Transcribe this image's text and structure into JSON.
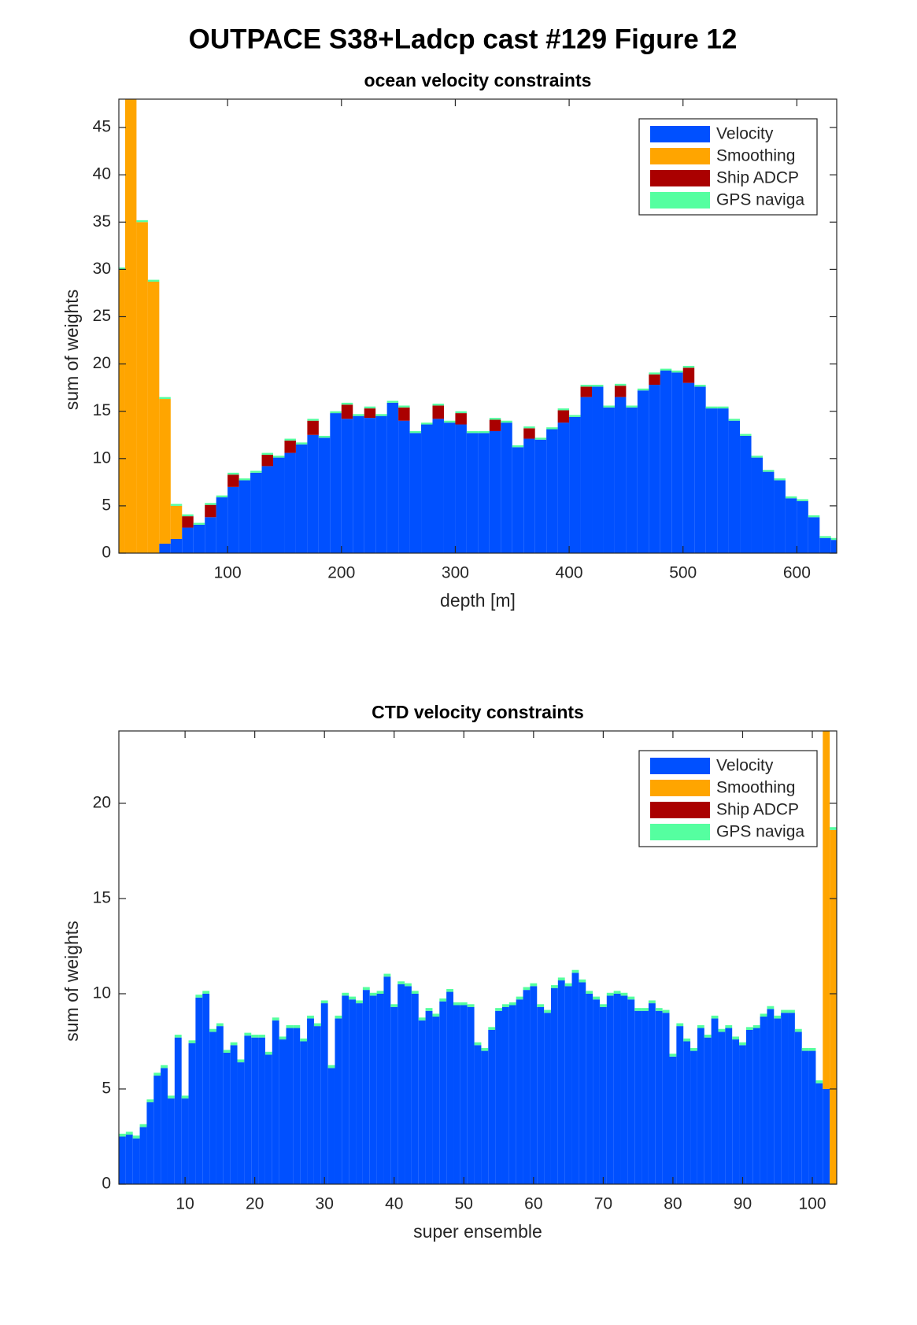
{
  "title": "OUTPACE S38+Ladcp cast #129  Figure 12",
  "chart_data": [
    {
      "type": "bar",
      "stacked": true,
      "title": "ocean velocity constraints",
      "xlabel": "depth [m]",
      "ylabel": "sum of weights",
      "legend": "upper right",
      "x": [
        5,
        15,
        25,
        35,
        45,
        55,
        65,
        75,
        85,
        95,
        105,
        115,
        125,
        135,
        145,
        155,
        165,
        175,
        185,
        195,
        205,
        215,
        225,
        235,
        245,
        255,
        265,
        275,
        285,
        295,
        305,
        315,
        325,
        335,
        345,
        355,
        365,
        375,
        385,
        395,
        405,
        415,
        425,
        435,
        445,
        455,
        465,
        475,
        485,
        495,
        505,
        515,
        525,
        535,
        545,
        555,
        565,
        575,
        585,
        595,
        605,
        615,
        625,
        635
      ],
      "xlim": [
        4.5,
        635
      ],
      "ylim": [
        0,
        48
      ],
      "xticks": [
        100,
        200,
        300,
        400,
        500,
        600
      ],
      "yticks": [
        0,
        5,
        10,
        15,
        20,
        25,
        30,
        35,
        40,
        45
      ],
      "series": [
        {
          "name": "Velocity",
          "color": "#0050ff",
          "values": [
            0,
            0,
            0,
            0,
            1,
            1.5,
            2.7,
            3.0,
            3.8,
            5.9,
            7.0,
            7.7,
            8.5,
            9.2,
            10.1,
            10.6,
            11.5,
            12.5,
            12.2,
            14.8,
            14.2,
            14.5,
            14.3,
            14.5,
            15.9,
            14.0,
            12.7,
            13.6,
            14.2,
            13.8,
            13.6,
            12.7,
            12.7,
            12.9,
            13.8,
            11.2,
            12.1,
            12.0,
            13.1,
            13.8,
            14.4,
            16.5,
            17.6,
            15.4,
            16.5,
            15.4,
            17.2,
            17.8,
            19.3,
            19.1,
            18.0,
            17.6,
            15.3,
            15.3,
            14.0,
            12.4,
            10.1,
            8.6,
            7.7,
            5.8,
            5.5,
            3.8,
            1.6,
            1.4
          ]
        },
        {
          "name": "Smoothing",
          "color": "#ffa500",
          "values": [
            30,
            48,
            35,
            28.7,
            15.3,
            3.5,
            0,
            0,
            0,
            0,
            0,
            0,
            0,
            0,
            0,
            0,
            0,
            0,
            0,
            0,
            0,
            0,
            0,
            0,
            0,
            0,
            0,
            0,
            0,
            0,
            0,
            0,
            0,
            0,
            0,
            0,
            0,
            0,
            0,
            0,
            0,
            0,
            0,
            0,
            0,
            0,
            0,
            0,
            0,
            0,
            0,
            0,
            0,
            0,
            0,
            0,
            0,
            0,
            0,
            0,
            0,
            0,
            0,
            0
          ]
        },
        {
          "name": "Ship ADCP",
          "color": "#aa0000",
          "values": [
            0,
            0,
            0,
            0,
            0,
            0,
            1.2,
            0,
            1.3,
            0,
            1.3,
            0,
            0,
            1.2,
            0,
            1.3,
            0,
            1.5,
            0,
            0,
            1.5,
            0,
            1.0,
            0,
            0,
            1.4,
            0,
            0,
            1.4,
            0,
            1.2,
            0,
            0,
            1.2,
            0,
            0,
            1.1,
            0,
            0,
            1.3,
            0,
            1.1,
            0,
            0,
            1.2,
            0,
            0,
            1.1,
            0,
            0,
            1.6,
            0,
            0,
            0,
            0,
            0,
            0,
            0,
            0,
            0,
            0,
            0,
            0,
            0
          ]
        },
        {
          "name": "GPS naviga",
          "color": "#55ffa0",
          "values": [
            0.2,
            0.2,
            0.2,
            0.2,
            0.2,
            0.2,
            0.2,
            0.2,
            0.2,
            0.2,
            0.2,
            0.2,
            0.2,
            0.2,
            0.2,
            0.2,
            0.2,
            0.2,
            0.2,
            0.2,
            0.2,
            0.2,
            0.2,
            0.2,
            0.2,
            0.2,
            0.2,
            0.2,
            0.2,
            0.2,
            0.2,
            0.2,
            0.2,
            0.2,
            0.2,
            0.2,
            0.2,
            0.2,
            0.2,
            0.2,
            0.2,
            0.2,
            0.2,
            0.2,
            0.2,
            0.2,
            0.2,
            0.2,
            0.2,
            0.2,
            0.2,
            0.2,
            0.2,
            0.2,
            0.2,
            0.2,
            0.2,
            0.2,
            0.2,
            0.2,
            0.2,
            0.2,
            0.2,
            0.2
          ]
        }
      ]
    },
    {
      "type": "bar",
      "stacked": true,
      "title": "CTD velocity constraints",
      "xlabel": "super ensemble",
      "ylabel": "sum of weights",
      "legend": "upper right",
      "x": [
        1,
        2,
        3,
        4,
        5,
        6,
        7,
        8,
        9,
        10,
        11,
        12,
        13,
        14,
        15,
        16,
        17,
        18,
        19,
        20,
        21,
        22,
        23,
        24,
        25,
        26,
        27,
        28,
        29,
        30,
        31,
        32,
        33,
        34,
        35,
        36,
        37,
        38,
        39,
        40,
        41,
        42,
        43,
        44,
        45,
        46,
        47,
        48,
        49,
        50,
        51,
        52,
        53,
        54,
        55,
        56,
        57,
        58,
        59,
        60,
        61,
        62,
        63,
        64,
        65,
        66,
        67,
        68,
        69,
        70,
        71,
        72,
        73,
        74,
        75,
        76,
        77,
        78,
        79,
        80,
        81,
        82,
        83,
        84,
        85,
        86,
        87,
        88,
        89,
        90,
        91,
        92,
        93,
        94,
        95,
        96,
        97,
        98,
        99,
        100,
        101,
        102,
        103
      ],
      "xlim": [
        0.5,
        103.5
      ],
      "ylim": [
        0,
        23.8
      ],
      "xticks": [
        10,
        20,
        30,
        40,
        50,
        60,
        70,
        80,
        90,
        100
      ],
      "yticks": [
        0,
        5,
        10,
        15,
        20
      ],
      "series": [
        {
          "name": "Velocity",
          "color": "#0050ff",
          "values": [
            2.5,
            2.6,
            2.4,
            3.0,
            4.3,
            5.7,
            6.1,
            4.5,
            7.7,
            4.5,
            7.4,
            9.8,
            10.0,
            8.0,
            8.3,
            6.9,
            7.3,
            6.4,
            7.8,
            7.7,
            7.7,
            6.8,
            8.6,
            7.6,
            8.2,
            8.2,
            7.5,
            8.7,
            8.3,
            9.5,
            6.1,
            8.7,
            9.9,
            9.7,
            9.5,
            10.2,
            9.9,
            10.0,
            10.9,
            9.3,
            10.5,
            10.4,
            10.0,
            8.6,
            9.1,
            8.8,
            9.6,
            10.1,
            9.4,
            9.4,
            9.3,
            7.3,
            7.0,
            8.1,
            9.1,
            9.3,
            9.4,
            9.7,
            10.2,
            10.4,
            9.3,
            9.0,
            10.3,
            10.7,
            10.4,
            11.1,
            10.6,
            10.0,
            9.7,
            9.3,
            9.9,
            10.0,
            9.9,
            9.7,
            9.1,
            9.1,
            9.5,
            9.1,
            9.0,
            6.7,
            8.3,
            7.5,
            7.0,
            8.2,
            7.7,
            8.7,
            8.0,
            8.2,
            7.6,
            7.3,
            8.1,
            8.2,
            8.8,
            9.2,
            8.7,
            9.0,
            9.0,
            8.0,
            7.0,
            7.0,
            5.3,
            5.0,
            0
          ]
        },
        {
          "name": "Smoothing",
          "color": "#ffa500",
          "values": [
            0,
            0,
            0,
            0,
            0,
            0,
            0,
            0,
            0,
            0,
            0,
            0,
            0,
            0,
            0,
            0,
            0,
            0,
            0,
            0,
            0,
            0,
            0,
            0,
            0,
            0,
            0,
            0,
            0,
            0,
            0,
            0,
            0,
            0,
            0,
            0,
            0,
            0,
            0,
            0,
            0,
            0,
            0,
            0,
            0,
            0,
            0,
            0,
            0,
            0,
            0,
            0,
            0,
            0,
            0,
            0,
            0,
            0,
            0,
            0,
            0,
            0,
            0,
            0,
            0,
            0,
            0,
            0,
            0,
            0,
            0,
            0,
            0,
            0,
            0,
            0,
            0,
            0,
            0,
            0,
            0,
            0,
            0,
            0,
            0,
            0,
            0,
            0,
            0,
            0,
            0,
            0,
            0,
            0,
            0,
            0,
            0,
            0,
            0,
            0,
            0,
            18.8,
            18.6
          ]
        },
        {
          "name": "Ship ADCP",
          "color": "#aa0000",
          "values": [
            0,
            0,
            0,
            0,
            0,
            0,
            0,
            0,
            0,
            0,
            0,
            0,
            0,
            0,
            0,
            0,
            0,
            0,
            0,
            0,
            0,
            0,
            0,
            0,
            0,
            0,
            0,
            0,
            0,
            0,
            0,
            0,
            0,
            0,
            0,
            0,
            0,
            0,
            0,
            0,
            0,
            0,
            0,
            0,
            0,
            0,
            0,
            0,
            0,
            0,
            0,
            0,
            0,
            0,
            0,
            0,
            0,
            0,
            0,
            0,
            0,
            0,
            0,
            0,
            0,
            0,
            0,
            0,
            0,
            0,
            0,
            0,
            0,
            0,
            0,
            0,
            0,
            0,
            0,
            0,
            0,
            0,
            0,
            0,
            0,
            0,
            0,
            0,
            0,
            0,
            0,
            0,
            0,
            0,
            0,
            0,
            0,
            0,
            0,
            0,
            0,
            0,
            0
          ]
        },
        {
          "name": "GPS naviga",
          "color": "#55ffa0",
          "values": [
            0.15,
            0.15,
            0.15,
            0.15,
            0.15,
            0.15,
            0.15,
            0.15,
            0.15,
            0.15,
            0.15,
            0.15,
            0.15,
            0.15,
            0.15,
            0.15,
            0.15,
            0.15,
            0.15,
            0.15,
            0.15,
            0.15,
            0.15,
            0.15,
            0.15,
            0.15,
            0.15,
            0.15,
            0.15,
            0.15,
            0.15,
            0.15,
            0.15,
            0.15,
            0.15,
            0.15,
            0.15,
            0.15,
            0.15,
            0.15,
            0.15,
            0.15,
            0.15,
            0.15,
            0.15,
            0.15,
            0.15,
            0.15,
            0.15,
            0.15,
            0.15,
            0.15,
            0.15,
            0.15,
            0.15,
            0.15,
            0.15,
            0.15,
            0.15,
            0.15,
            0.15,
            0.15,
            0.15,
            0.15,
            0.15,
            0.15,
            0.15,
            0.15,
            0.15,
            0.15,
            0.15,
            0.15,
            0.15,
            0.15,
            0.15,
            0.15,
            0.15,
            0.15,
            0.15,
            0.15,
            0.15,
            0.15,
            0.15,
            0.15,
            0.15,
            0.15,
            0.15,
            0.15,
            0.15,
            0.15,
            0.15,
            0.15,
            0.15,
            0.15,
            0.15,
            0.15,
            0.15,
            0.15,
            0.15,
            0.15,
            0.15,
            0.15,
            0.15
          ]
        }
      ]
    }
  ]
}
